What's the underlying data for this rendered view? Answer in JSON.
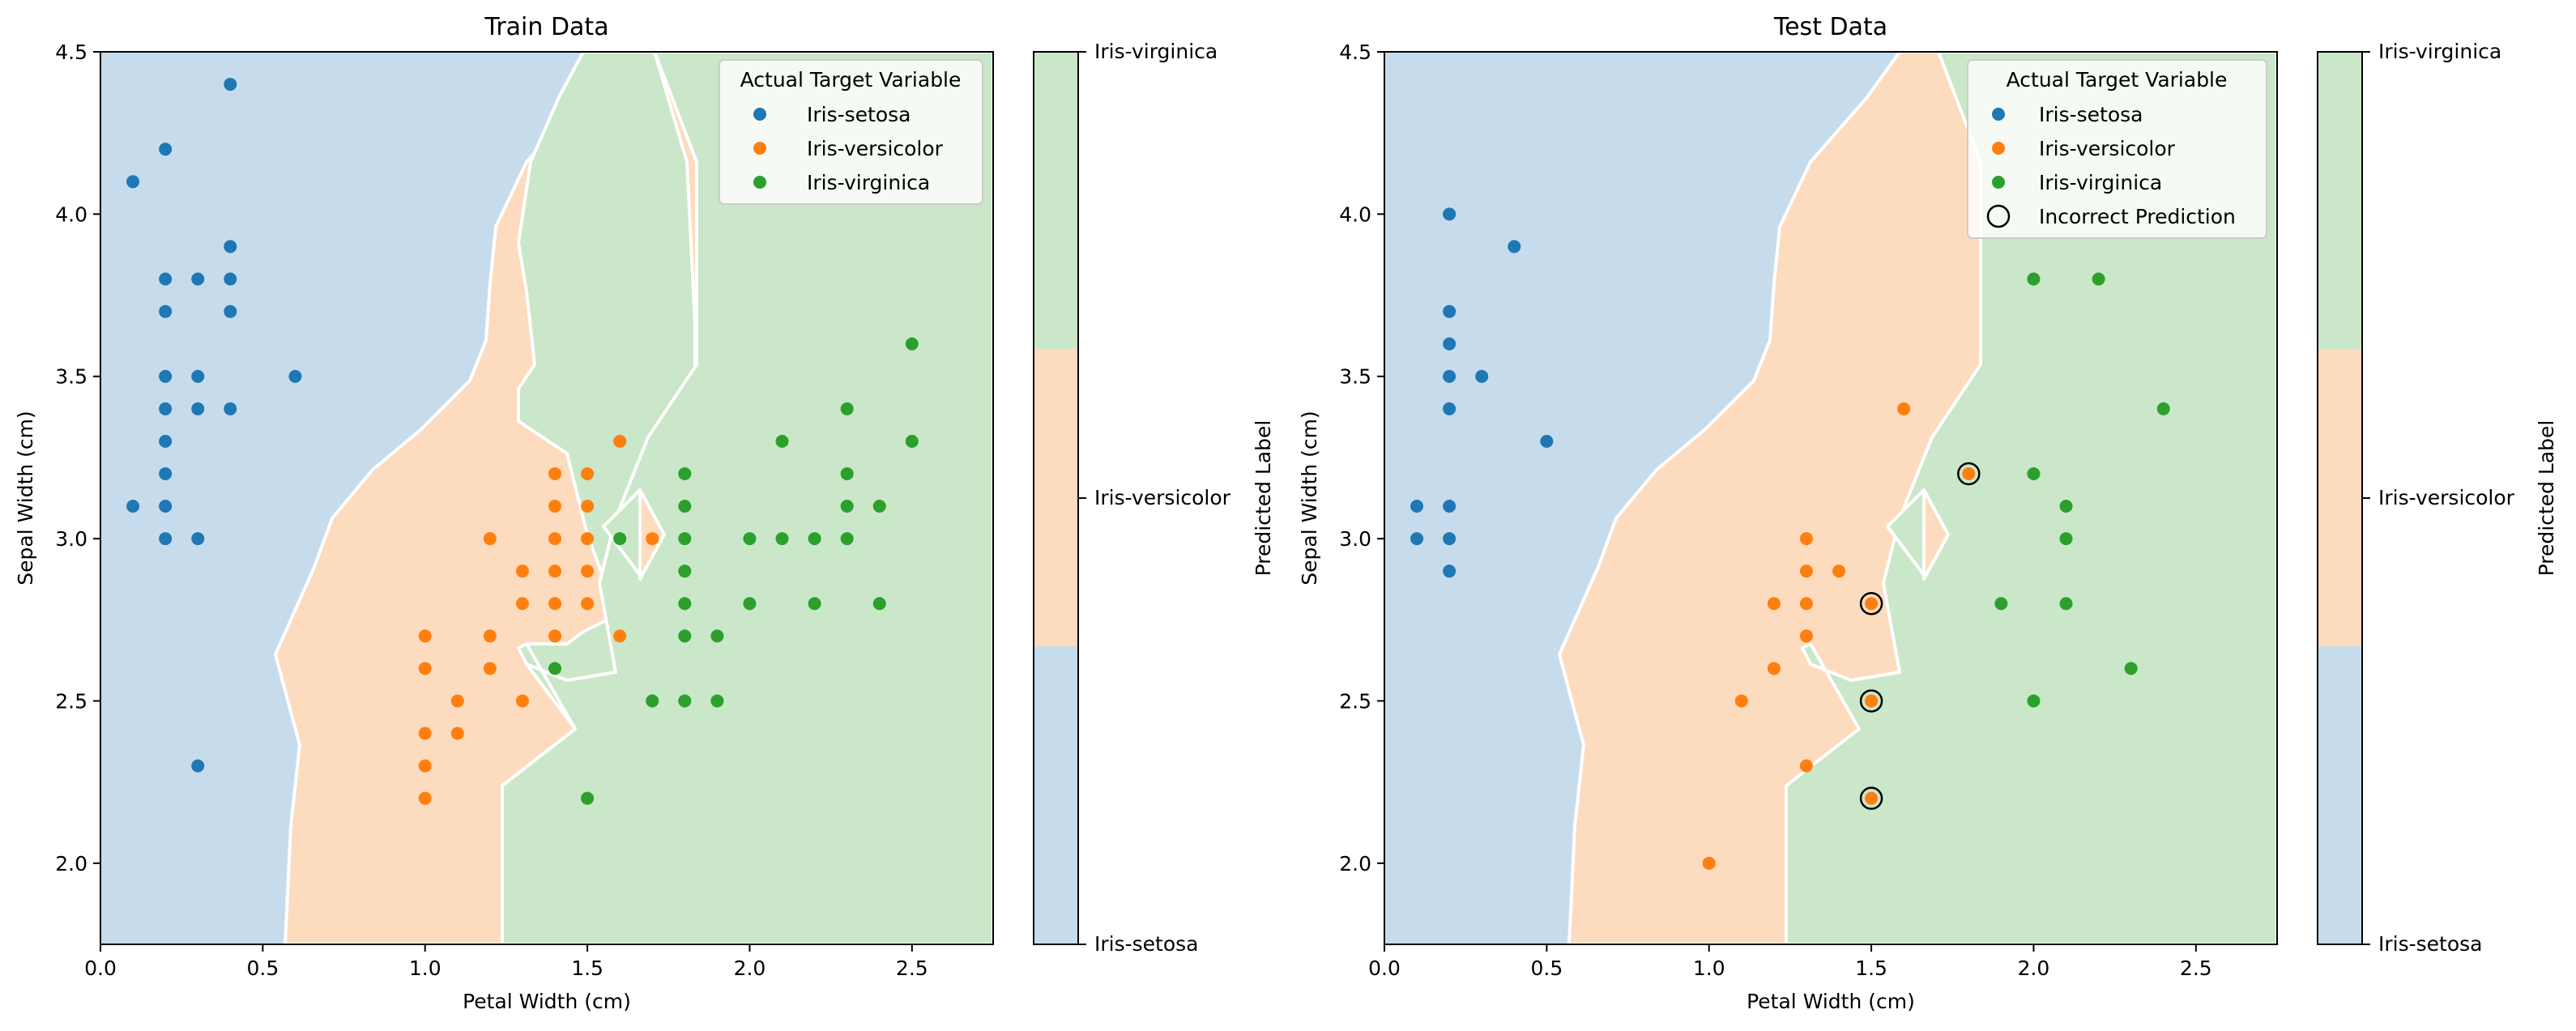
{
  "colors": {
    "setosa": "#1f77b4",
    "versicolor": "#ff7f0e",
    "virginica": "#2ca02c",
    "region_setosa": "#c6dcec",
    "region_versicolor": "#fddbbf",
    "region_virginica": "#cae7c9",
    "boundary": "#ffffff"
  },
  "chart_data": [
    {
      "type": "scatter",
      "title": "Train Data",
      "xlabel": "Petal Width (cm)",
      "ylabel": "Sepal Width (cm)",
      "xlim": [
        0.0,
        2.75
      ],
      "ylim": [
        1.75,
        4.5
      ],
      "xticks": [
        "0.0",
        "0.5",
        "1.0",
        "1.5",
        "2.0",
        "2.5"
      ],
      "yticks": [
        "2.0",
        "2.5",
        "3.0",
        "3.5",
        "4.0",
        "4.5"
      ],
      "grid": false,
      "legend": {
        "title": "Actual Target Variable",
        "placement": "top-right",
        "entries": [
          "Iris-setosa",
          "Iris-versicolor",
          "Iris-virginica"
        ]
      },
      "colorbar": {
        "label": "Predicted Label",
        "ticks": [
          "Iris-setosa",
          "Iris-versicolor",
          "Iris-virginica"
        ]
      },
      "decision_regions": "Iris-setosa (left), Iris-versicolor (middle band), Iris-virginica (right)",
      "series": [
        {
          "name": "Iris-setosa",
          "points": [
            [
              0.1,
              4.1
            ],
            [
              0.1,
              3.1
            ],
            [
              0.2,
              4.2
            ],
            [
              0.2,
              3.8
            ],
            [
              0.2,
              3.7
            ],
            [
              0.2,
              3.5
            ],
            [
              0.2,
              3.4
            ],
            [
              0.2,
              3.3
            ],
            [
              0.2,
              3.2
            ],
            [
              0.2,
              3.1
            ],
            [
              0.2,
              3.0
            ],
            [
              0.3,
              3.8
            ],
            [
              0.3,
              3.5
            ],
            [
              0.3,
              3.4
            ],
            [
              0.3,
              3.0
            ],
            [
              0.3,
              2.3
            ],
            [
              0.4,
              4.4
            ],
            [
              0.4,
              3.9
            ],
            [
              0.4,
              3.8
            ],
            [
              0.4,
              3.7
            ],
            [
              0.4,
              3.4
            ],
            [
              0.6,
              3.5
            ]
          ]
        },
        {
          "name": "Iris-versicolor",
          "points": [
            [
              1.0,
              2.7
            ],
            [
              1.0,
              2.6
            ],
            [
              1.0,
              2.4
            ],
            [
              1.0,
              2.3
            ],
            [
              1.0,
              2.2
            ],
            [
              1.1,
              2.5
            ],
            [
              1.1,
              2.4
            ],
            [
              1.2,
              3.0
            ],
            [
              1.2,
              2.7
            ],
            [
              1.2,
              2.6
            ],
            [
              1.3,
              2.9
            ],
            [
              1.3,
              2.8
            ],
            [
              1.3,
              2.5
            ],
            [
              1.4,
              3.2
            ],
            [
              1.4,
              3.1
            ],
            [
              1.4,
              3.0
            ],
            [
              1.4,
              2.9
            ],
            [
              1.4,
              2.8
            ],
            [
              1.4,
              2.7
            ],
            [
              1.5,
              3.2
            ],
            [
              1.5,
              3.1
            ],
            [
              1.5,
              3.0
            ],
            [
              1.5,
              2.9
            ],
            [
              1.5,
              2.8
            ],
            [
              1.6,
              3.3
            ],
            [
              1.6,
              2.7
            ],
            [
              1.7,
              3.0
            ]
          ]
        },
        {
          "name": "Iris-virginica",
          "points": [
            [
              1.4,
              2.6
            ],
            [
              1.5,
              2.2
            ],
            [
              1.6,
              3.0
            ],
            [
              1.7,
              2.5
            ],
            [
              1.8,
              3.2
            ],
            [
              1.8,
              3.1
            ],
            [
              1.8,
              3.0
            ],
            [
              1.8,
              2.9
            ],
            [
              1.8,
              2.8
            ],
            [
              1.8,
              2.7
            ],
            [
              1.8,
              2.5
            ],
            [
              1.9,
              2.7
            ],
            [
              1.9,
              2.5
            ],
            [
              2.0,
              3.0
            ],
            [
              2.0,
              2.8
            ],
            [
              2.1,
              3.3
            ],
            [
              2.1,
              3.0
            ],
            [
              2.2,
              3.0
            ],
            [
              2.2,
              2.8
            ],
            [
              2.3,
              3.4
            ],
            [
              2.3,
              3.2
            ],
            [
              2.3,
              3.1
            ],
            [
              2.3,
              3.0
            ],
            [
              2.4,
              3.1
            ],
            [
              2.4,
              2.8
            ],
            [
              2.5,
              3.6
            ],
            [
              2.5,
              3.3
            ]
          ]
        }
      ]
    },
    {
      "type": "scatter",
      "title": "Test Data",
      "xlabel": "Petal Width (cm)",
      "ylabel": "Sepal Width (cm)",
      "xlim": [
        0.0,
        2.75
      ],
      "ylim": [
        1.75,
        4.5
      ],
      "xticks": [
        "0.0",
        "0.5",
        "1.0",
        "1.5",
        "2.0",
        "2.5"
      ],
      "yticks": [
        "2.0",
        "2.5",
        "3.0",
        "3.5",
        "4.0",
        "4.5"
      ],
      "grid": false,
      "legend": {
        "title": "Actual Target Variable",
        "placement": "top-right",
        "entries": [
          "Iris-setosa",
          "Iris-versicolor",
          "Iris-virginica",
          "Incorrect Prediction"
        ]
      },
      "colorbar": {
        "label": "Predicted Label",
        "ticks": [
          "Iris-setosa",
          "Iris-versicolor",
          "Iris-virginica"
        ]
      },
      "decision_regions": "Iris-setosa (left), Iris-versicolor (middle band), Iris-virginica (right)",
      "series": [
        {
          "name": "Iris-setosa",
          "points": [
            [
              0.1,
              3.1
            ],
            [
              0.1,
              3.0
            ],
            [
              0.2,
              4.0
            ],
            [
              0.2,
              3.7
            ],
            [
              0.2,
              3.6
            ],
            [
              0.2,
              3.5
            ],
            [
              0.2,
              3.4
            ],
            [
              0.2,
              3.1
            ],
            [
              0.2,
              3.0
            ],
            [
              0.2,
              2.9
            ],
            [
              0.3,
              3.5
            ],
            [
              0.4,
              3.9
            ],
            [
              0.5,
              3.3
            ]
          ]
        },
        {
          "name": "Iris-versicolor",
          "points": [
            [
              1.0,
              2.0
            ],
            [
              1.1,
              2.5
            ],
            [
              1.2,
              2.8
            ],
            [
              1.2,
              2.6
            ],
            [
              1.3,
              3.0
            ],
            [
              1.3,
              2.9
            ],
            [
              1.3,
              2.8
            ],
            [
              1.3,
              2.7
            ],
            [
              1.3,
              2.3
            ],
            [
              1.4,
              2.9
            ],
            [
              1.5,
              2.8
            ],
            [
              1.5,
              2.5
            ],
            [
              1.5,
              2.2
            ],
            [
              1.6,
              3.4
            ],
            [
              1.8,
              3.2
            ]
          ]
        },
        {
          "name": "Iris-virginica",
          "points": [
            [
              1.9,
              2.8
            ],
            [
              2.0,
              3.8
            ],
            [
              2.0,
              3.2
            ],
            [
              2.0,
              2.5
            ],
            [
              2.1,
              3.1
            ],
            [
              2.1,
              3.0
            ],
            [
              2.1,
              2.8
            ],
            [
              2.2,
              3.8
            ],
            [
              2.3,
              2.6
            ],
            [
              2.4,
              3.4
            ]
          ]
        }
      ],
      "incorrect_predictions": [
        [
          1.5,
          2.8
        ],
        [
          1.5,
          2.5
        ],
        [
          1.5,
          2.2
        ],
        [
          1.8,
          3.2
        ]
      ]
    }
  ]
}
